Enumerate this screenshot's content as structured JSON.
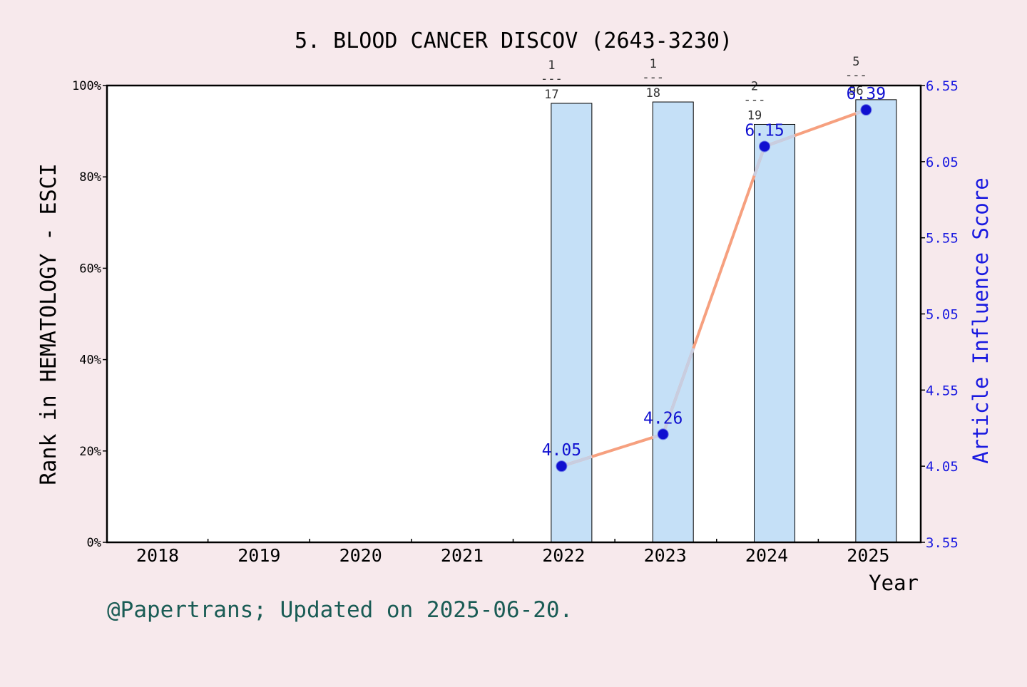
{
  "chart_data": {
    "type": "bar",
    "title": "5. BLOOD CANCER DISCOV (2643-3230)",
    "categories": [
      "2018",
      "2019",
      "2020",
      "2021",
      "2022",
      "2023",
      "2024",
      "2025"
    ],
    "xlabel": "Year",
    "ylabel_left": "Rank in HEMATOLOGY - ESCI",
    "ylabel_right": "Article Influence Score",
    "left_axis": {
      "ylim": [
        0,
        100
      ],
      "ticks": [
        "0%",
        "20%",
        "40%",
        "60%",
        "80%",
        "100%"
      ]
    },
    "right_axis": {
      "ylim": [
        3.55,
        6.55
      ],
      "ticks": [
        "3.55",
        "4.05",
        "4.55",
        "5.05",
        "5.55",
        "6.05",
        "6.55"
      ]
    },
    "series": [
      {
        "kind": "bar",
        "values": [
          null,
          null,
          null,
          null,
          96.1,
          96.4,
          91.5,
          96.9
        ],
        "rank_numerators": [
          null,
          null,
          null,
          null,
          "1",
          "1",
          "2",
          "5"
        ],
        "rank_denominators": [
          null,
          null,
          null,
          null,
          "17",
          "18",
          "19",
          "96"
        ]
      },
      {
        "kind": "line",
        "axis": "right",
        "values": [
          null,
          null,
          null,
          null,
          4.05,
          4.26,
          6.15,
          6.39
        ],
        "point_labels": [
          null,
          null,
          null,
          null,
          "4.05",
          "4.26",
          "6.15",
          "6.39"
        ]
      }
    ],
    "colors": {
      "bar_fill": "#c5e0f7",
      "line": "#f6a07f",
      "line_highlight": "#c8cde0",
      "point": "#1010d0",
      "right_axis": "#1a1ae0",
      "footer": "#1a5c55",
      "background": "#f7e9ec"
    },
    "grid": false
  },
  "footer": "@Papertrans; Updated on 2025-06-20."
}
